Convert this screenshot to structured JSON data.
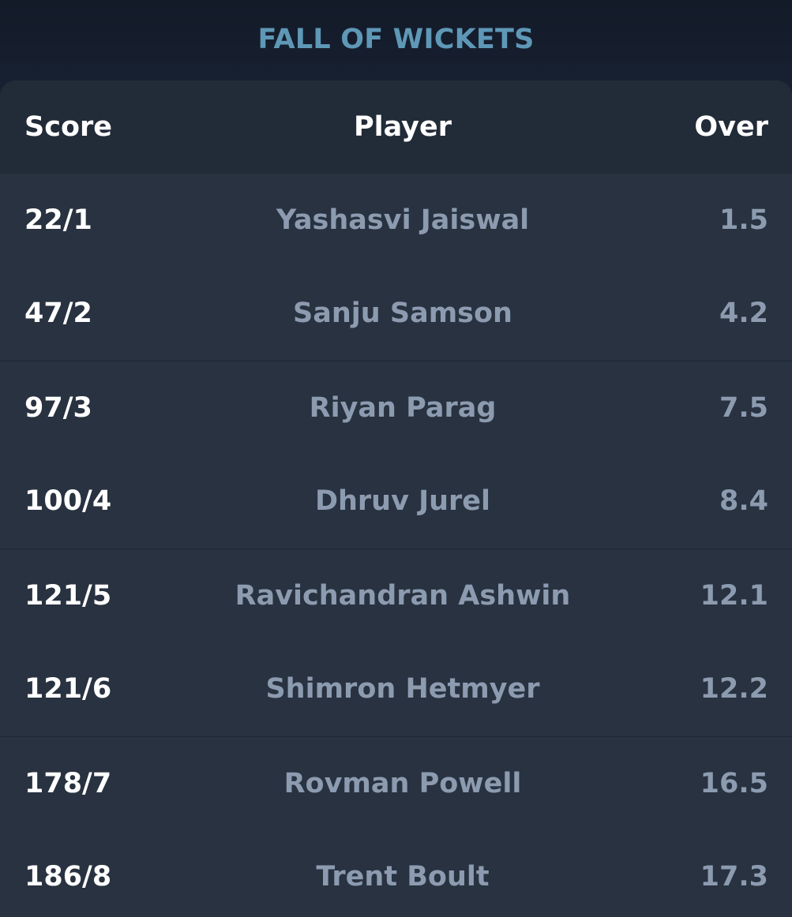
{
  "title": "FALL OF WICKETS",
  "columns": {
    "score": "Score",
    "player": "Player",
    "over": "Over"
  },
  "wickets": [
    {
      "score": "22/1",
      "player": "Yashasvi Jaiswal",
      "over": "1.5"
    },
    {
      "score": "47/2",
      "player": "Sanju Samson",
      "over": "4.2"
    },
    {
      "score": "97/3",
      "player": "Riyan Parag",
      "over": "7.5"
    },
    {
      "score": "100/4",
      "player": "Dhruv Jurel",
      "over": "8.4"
    },
    {
      "score": "121/5",
      "player": "Ravichandran Ashwin",
      "over": "12.1"
    },
    {
      "score": "121/6",
      "player": "Shimron Hetmyer",
      "over": "12.2"
    },
    {
      "score": "178/7",
      "player": "Rovman Powell",
      "over": "16.5"
    },
    {
      "score": "186/8",
      "player": "Trent Boult",
      "over": "17.3"
    }
  ]
}
